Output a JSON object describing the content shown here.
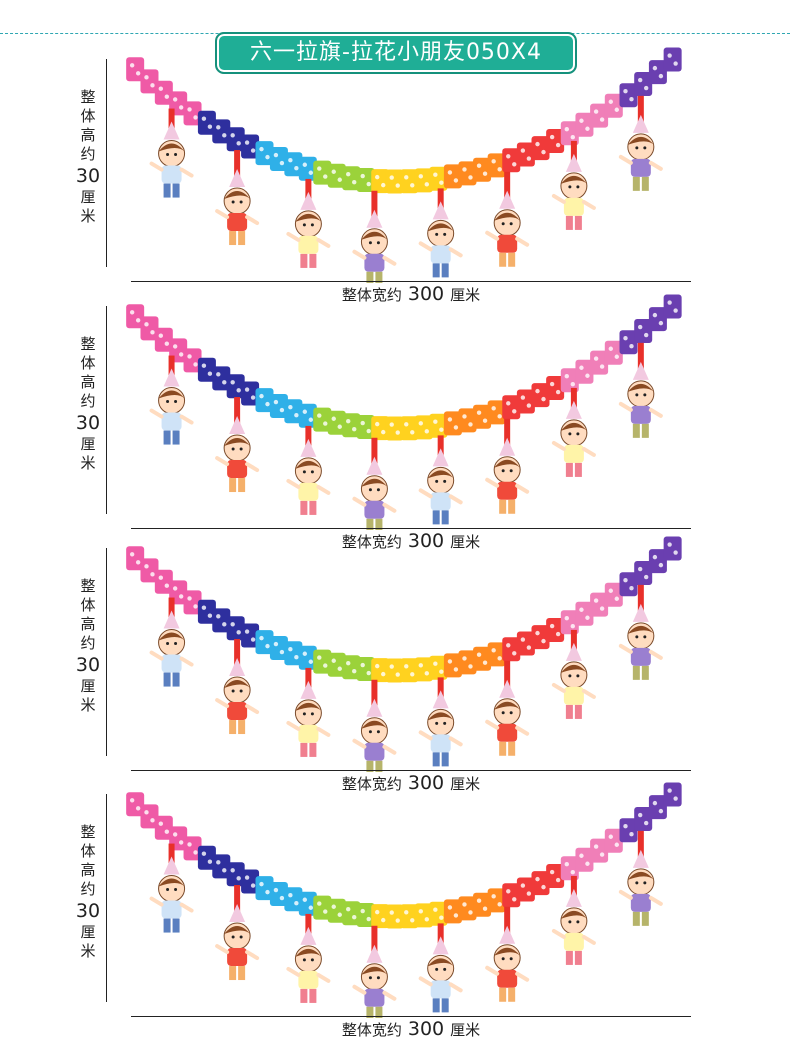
{
  "title": "六一拉旗-拉花小朋友050X4",
  "panels": [
    {
      "width_label_prefix": "整体宽约",
      "width_value": "300",
      "width_unit": "厘米",
      "height_chars": [
        "整",
        "体",
        "高",
        "约"
      ],
      "height_value": "30",
      "height_unit_chars": [
        "厘",
        "米"
      ]
    },
    {
      "width_label_prefix": "整体宽约",
      "width_value": "300",
      "width_unit": "厘米",
      "height_chars": [
        "整",
        "体",
        "高",
        "约"
      ],
      "height_value": "30",
      "height_unit_chars": [
        "厘",
        "米"
      ]
    },
    {
      "width_label_prefix": "整体宽约",
      "width_value": "300",
      "width_unit": "厘米",
      "height_chars": [
        "整",
        "体",
        "高",
        "约"
      ],
      "height_value": "30",
      "height_unit_chars": [
        "厘",
        "米"
      ]
    },
    {
      "width_label_prefix": "整体宽约",
      "width_value": "300",
      "width_unit": "厘米",
      "height_chars": [
        "整",
        "体",
        "高",
        "约"
      ],
      "height_value": "30",
      "height_unit_chars": [
        "厘",
        "米"
      ]
    }
  ],
  "colors": {
    "accent": "#1fae96",
    "rainbow": [
      "#ef5aa6",
      "#2e2f9e",
      "#2fb0e8",
      "#9bd23a",
      "#ffd21f",
      "#ff8a1f",
      "#f03a3a",
      "#f07fb8",
      "#6a3fb0"
    ]
  }
}
